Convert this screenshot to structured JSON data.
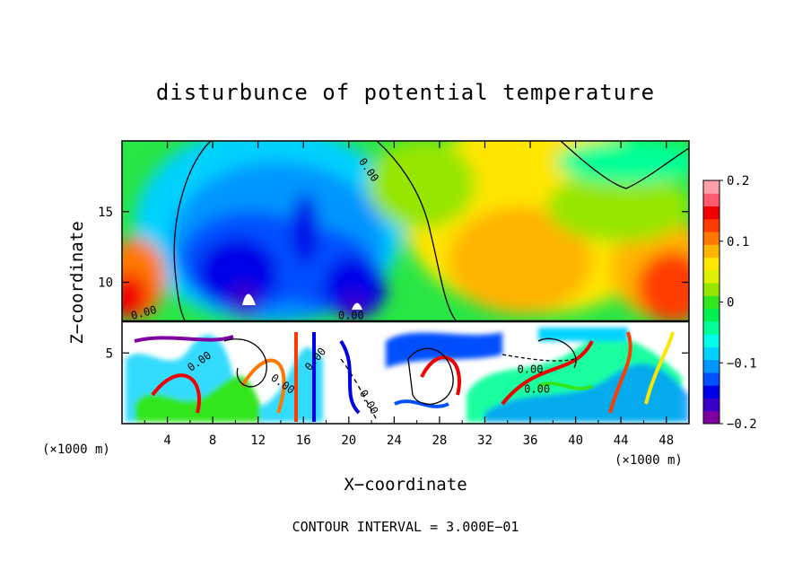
{
  "chart_data": {
    "type": "heatmap",
    "title": "disturbunce of potential temperature",
    "xlabel": "X−coordinate",
    "ylabel": "Z−coordinate",
    "x_unit": "(×1000 m)",
    "x_unit_right": "(×1000 m)",
    "footer": "CONTOUR INTERVAL = 3.000E−01",
    "xlim": [
      0,
      50
    ],
    "ylim": [
      0,
      20
    ],
    "x_ticks": [
      4,
      8,
      12,
      16,
      20,
      24,
      28,
      32,
      36,
      40,
      44,
      48
    ],
    "y_ticks": [
      5,
      10,
      15
    ],
    "x_tick_labels": [
      "4",
      "8",
      "12",
      "16",
      "20",
      "24",
      "28",
      "32",
      "36",
      "40",
      "44",
      "48"
    ],
    "y_tick_labels": [
      "5",
      "10",
      "15"
    ],
    "colorbar": {
      "min": -0.2,
      "max": 0.2,
      "ticks": [
        0.2,
        0.1,
        0,
        -0.1,
        -0.2
      ],
      "tick_labels": [
        "0.2",
        "0.1",
        "0",
        "−0.1",
        "−0.2"
      ],
      "colors": [
        "#7f00a0",
        "#3a00c8",
        "#0000e8",
        "#0050ff",
        "#0096ff",
        "#00d2ff",
        "#00ffe8",
        "#00ff96",
        "#00f050",
        "#32e61e",
        "#96e600",
        "#dcf000",
        "#ffe600",
        "#ffb400",
        "#ff7800",
        "#ff3c00",
        "#f00000",
        "#ff5a6e",
        "#ffa0aa"
      ]
    },
    "contour_labels": [
      {
        "text": "0.00",
        "x": 21.5,
        "y": 17.8,
        "rotate": 55
      },
      {
        "text": "0.00",
        "x": 2.0,
        "y": 7.6,
        "rotate": -15
      },
      {
        "text": "0.00",
        "x": 20.2,
        "y": 7.4,
        "rotate": 0
      },
      {
        "text": "0.00",
        "x": 7.0,
        "y": 4.2,
        "rotate": -35
      },
      {
        "text": "0.00",
        "x": 14.0,
        "y": 2.6,
        "rotate": 35
      },
      {
        "text": "0.00",
        "x": 17.3,
        "y": 4.4,
        "rotate": -50
      },
      {
        "text": "0.00",
        "x": 21.5,
        "y": 1.4,
        "rotate": 60
      },
      {
        "text": "0.00",
        "x": 36.0,
        "y": 3.6,
        "rotate": 0
      },
      {
        "text": "0.00",
        "x": 36.6,
        "y": 2.2,
        "rotate": 0
      }
    ]
  }
}
